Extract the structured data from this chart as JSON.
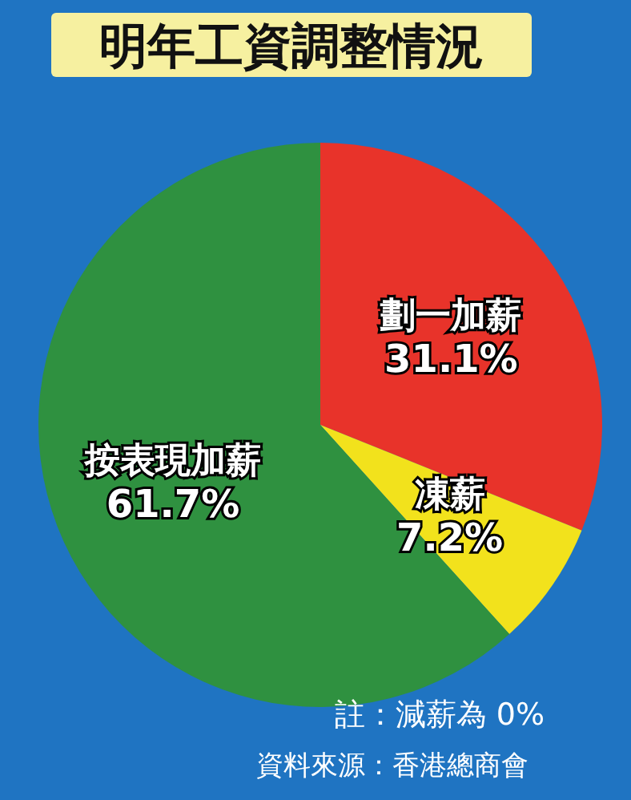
{
  "chart_data": {
    "type": "pie",
    "title": "明年工資調整情況",
    "categories": [
      "劃一加薪",
      "凍薪",
      "按表現加薪"
    ],
    "values": [
      31.1,
      7.2,
      61.7
    ],
    "value_labels": [
      "31.1%",
      "7.2%",
      "61.7%"
    ],
    "colors": [
      "#e8332a",
      "#f2e21c",
      "#2f9140"
    ],
    "annotations": [
      "註：減薪為 0%",
      "資料來源：香港總商會"
    ]
  }
}
